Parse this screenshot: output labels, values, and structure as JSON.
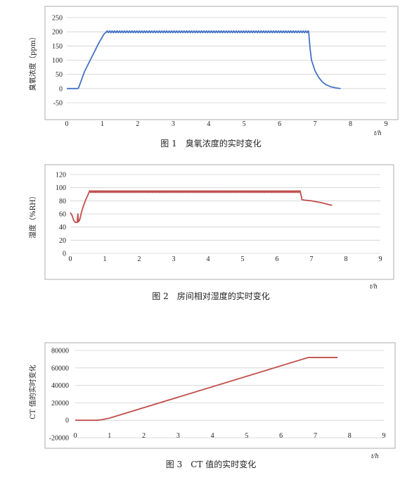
{
  "chart_data": [
    {
      "type": "line",
      "caption": "图 1　臭氧浓度的实时变化",
      "ylabel": "臭氧浓度（ppm）",
      "xlabel_unit": "t/h",
      "xlim": [
        0,
        9
      ],
      "ylim": [
        -50,
        250
      ],
      "x_ticks": [
        0,
        1,
        2,
        3,
        4,
        5,
        6,
        7,
        8,
        9
      ],
      "y_ticks": [
        -50,
        0,
        50,
        100,
        150,
        200,
        250
      ],
      "color": "#4472C4",
      "wave": {
        "from": 1.12,
        "to": 6.82,
        "amplitude": 3,
        "period": 0.07
      },
      "series": [
        {
          "x": [
            0,
            0.3,
            0.33,
            0.5,
            0.7,
            0.9,
            1.05,
            1.12,
            6.82,
            6.86,
            6.9,
            7.0,
            7.1,
            7.2,
            7.3,
            7.45,
            7.6,
            7.72
          ],
          "y": [
            0,
            0,
            2,
            60,
            110,
            160,
            192,
            200,
            200,
            140,
            100,
            62,
            40,
            24,
            14,
            6,
            2,
            0
          ]
        }
      ]
    },
    {
      "type": "line",
      "caption": "图 2　房间相对湿度的实时变化",
      "ylabel": "湿度（%RH）",
      "xlabel_unit": "t/h",
      "xlim": [
        0,
        9
      ],
      "ylim": [
        0,
        120
      ],
      "x_ticks": [
        0,
        1,
        2,
        3,
        4,
        5,
        6,
        7,
        8,
        9
      ],
      "y_ticks": [
        0,
        20,
        40,
        60,
        80,
        100,
        120
      ],
      "color": "#C0504D",
      "wave": {
        "from": 0.55,
        "to": 6.72,
        "amplitude": 1.3,
        "period": 0.05
      },
      "series": [
        {
          "x": [
            0,
            0.05,
            0.1,
            0.15,
            0.2,
            0.22,
            0.24,
            0.28,
            0.32,
            0.38,
            0.45,
            0.52,
            0.55,
            6.65,
            6.68,
            6.72,
            6.8,
            7.0,
            7.3,
            7.6
          ],
          "y": [
            62,
            58,
            50,
            47,
            47,
            60,
            48,
            52,
            62,
            72,
            82,
            90,
            94,
            94,
            94,
            82,
            81,
            80,
            77,
            73
          ]
        }
      ]
    },
    {
      "type": "line",
      "caption": "图 3　CT 值的实时变化",
      "ylabel": "CT 值的实时变化",
      "xlabel_unit": "t/h",
      "xlim": [
        0,
        9
      ],
      "ylim": [
        -20000,
        80000
      ],
      "x_ticks": [
        0,
        1,
        2,
        3,
        4,
        5,
        6,
        7,
        8,
        9
      ],
      "y_ticks": [
        -20000,
        0,
        20000,
        40000,
        60000,
        80000
      ],
      "color": "#C0504D",
      "series": [
        {
          "x": [
            0,
            0.6,
            0.75,
            1.0,
            6.8,
            7.65
          ],
          "y": [
            0,
            0,
            500,
            2500,
            72000,
            72000
          ]
        }
      ]
    }
  ]
}
